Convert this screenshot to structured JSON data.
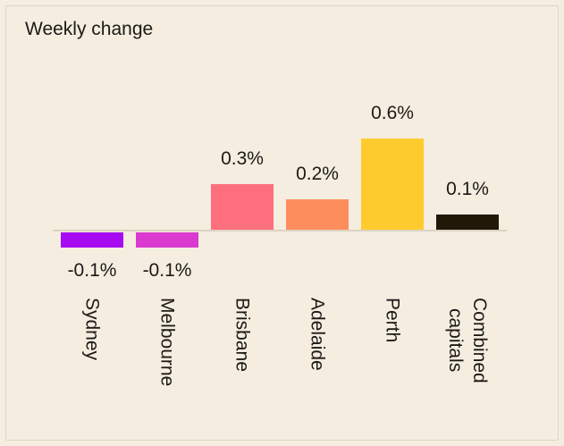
{
  "title": "Weekly change",
  "theme": {
    "background": "#F4EDE0",
    "card_border": "#DCD4C4",
    "axis_line": "#DBD3C3",
    "text": "#1C1A15"
  },
  "chart_data": {
    "type": "bar",
    "title": "Weekly change",
    "categories": [
      "Sydney",
      "Melbourne",
      "Brisbane",
      "Adelaide",
      "Perth",
      "Combined capitals"
    ],
    "categories_display": [
      "Sydney",
      "Melbourne",
      "Brisbane",
      "Adelaide",
      "Perth",
      "Combined\ncapitals"
    ],
    "values": [
      -0.1,
      -0.1,
      0.3,
      0.2,
      0.6,
      0.1
    ],
    "value_labels": [
      "-0.1%",
      "-0.1%",
      "0.3%",
      "0.2%",
      "0.6%",
      "0.1%"
    ],
    "unit": "%",
    "bar_colors": [
      "#A60BF2",
      "#DA3ACF",
      "#FE6F7D",
      "#FE8D5E",
      "#FECB2F",
      "#211808"
    ],
    "xlabel": "",
    "ylabel": "",
    "ylim": [
      -0.2,
      0.7
    ],
    "grid": false,
    "legend": false,
    "axis": "baseline-only",
    "value_label_position": "above positive bars, below negative bars",
    "category_label_rotation": 90
  }
}
